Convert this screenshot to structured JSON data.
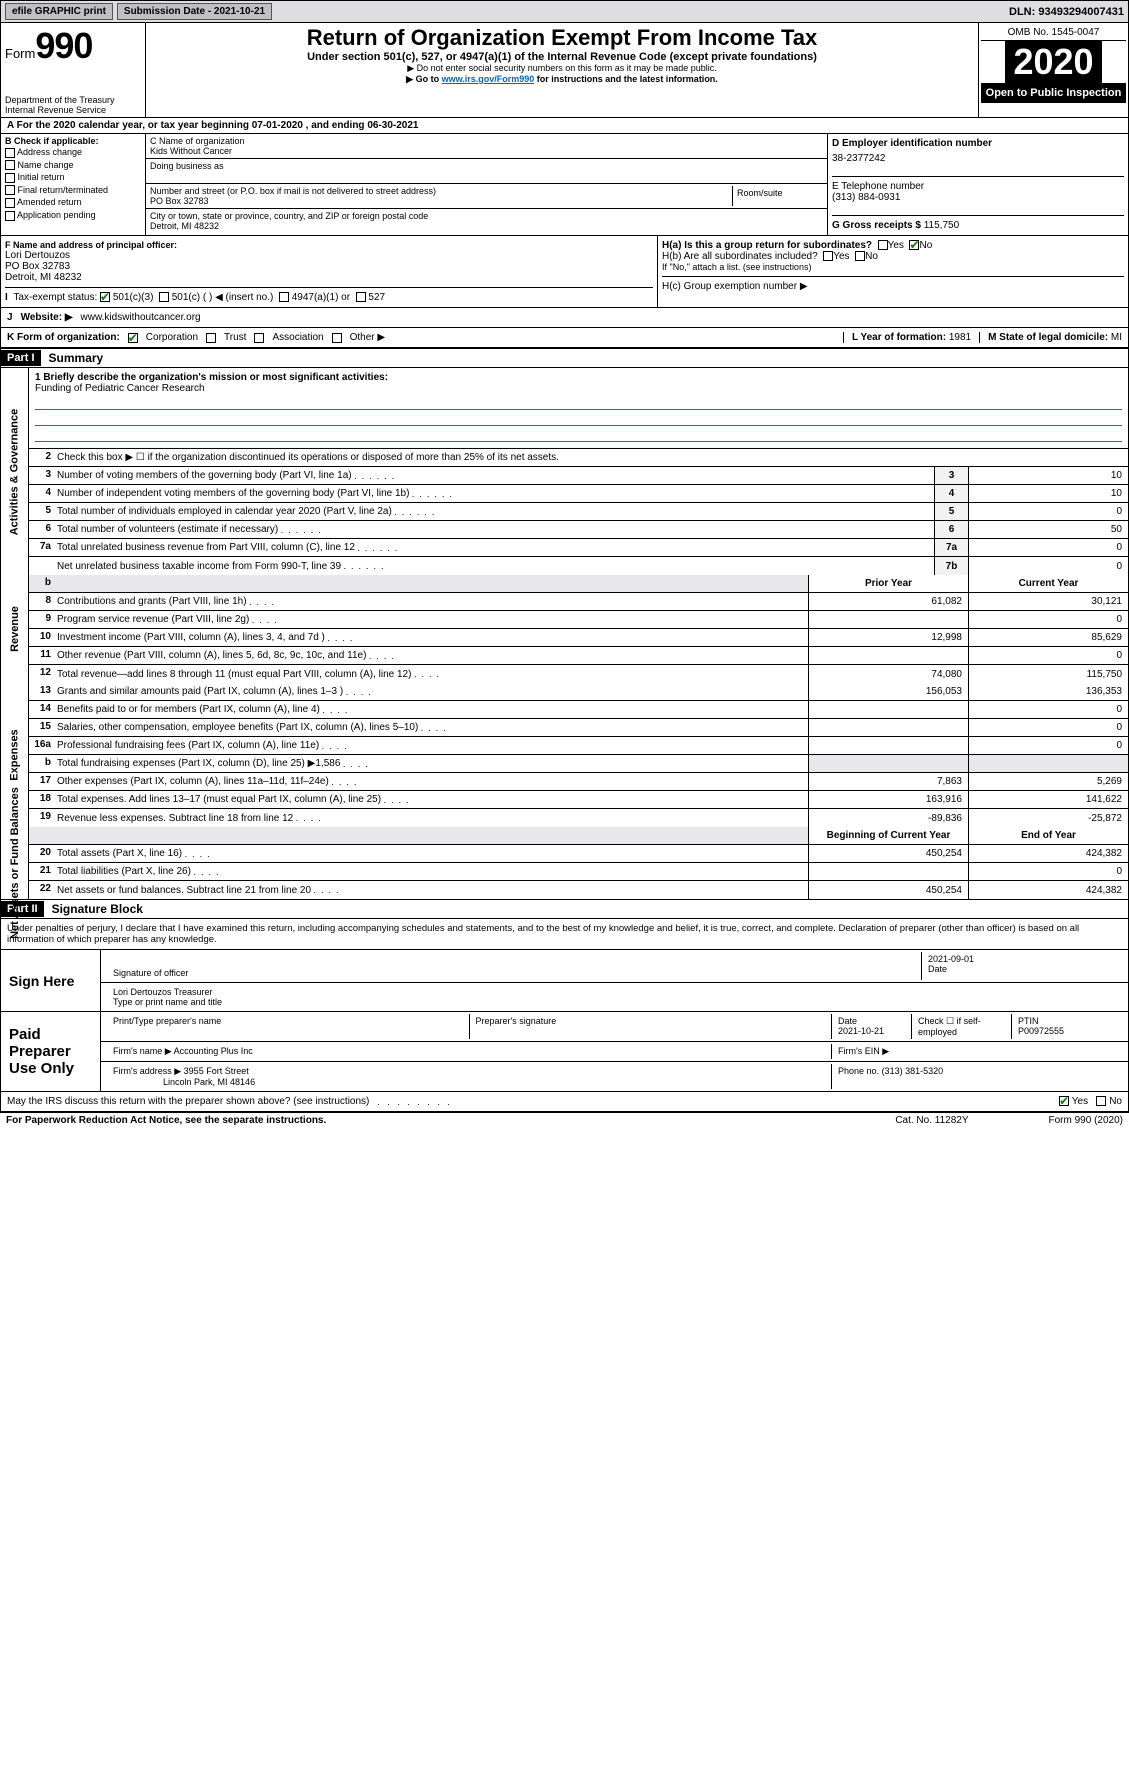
{
  "topbar": {
    "efile": "efile GRAPHIC print",
    "subdate_label": "Submission Date - 2021-10-21",
    "dln": "DLN: 93493294007431"
  },
  "header": {
    "form_word": "Form",
    "form_num": "990",
    "dept": "Department of the Treasury\nInternal Revenue Service",
    "title": "Return of Organization Exempt From Income Tax",
    "subtitle": "Under section 501(c), 527, or 4947(a)(1) of the Internal Revenue Code (except private foundations)",
    "note1": "▶ Do not enter social security numbers on this form as it may be made public.",
    "note2_pre": "▶ Go to ",
    "note2_link": "www.irs.gov/Form990",
    "note2_post": " for instructions and the latest information.",
    "omb": "OMB No. 1545-0047",
    "year": "2020",
    "inspect": "Open to Public Inspection"
  },
  "period": "A For the 2020 calendar year, or tax year beginning 07-01-2020   , and ending 06-30-2021",
  "section_b": {
    "label": "B Check if applicable:",
    "opts": [
      "Address change",
      "Name change",
      "Initial return",
      "Final return/terminated",
      "Amended return",
      "Application pending"
    ]
  },
  "section_c": {
    "name_label": "C Name of organization",
    "name": "Kids Without Cancer",
    "dba_label": "Doing business as",
    "addr_label": "Number and street (or P.O. box if mail is not delivered to street address)",
    "room_label": "Room/suite",
    "addr": "PO Box 32783",
    "city_label": "City or town, state or province, country, and ZIP or foreign postal code",
    "city": "Detroit, MI  48232"
  },
  "section_d": {
    "label": "D Employer identification number",
    "val": "38-2377242"
  },
  "section_e": {
    "label": "E Telephone number",
    "val": "(313) 884-0931"
  },
  "section_g": {
    "label": "G Gross receipts $",
    "val": "115,750"
  },
  "section_f": {
    "label": "F  Name and address of principal officer:",
    "name": "Lori Dertouzos",
    "addr1": "PO Box 32783",
    "addr2": "Detroit, MI  48232"
  },
  "section_h": {
    "ha": "H(a)  Is this a group return for subordinates?",
    "hb": "H(b)  Are all subordinates included?",
    "hb_note": "If \"No,\" attach a list. (see instructions)",
    "hc": "H(c)  Group exemption number ▶",
    "yes": "Yes",
    "no": "No"
  },
  "section_i": {
    "label": "Tax-exempt status:",
    "o1": "501(c)(3)",
    "o2": "501(c) (  ) ◀ (insert no.)",
    "o3": "4947(a)(1) or",
    "o4": "527"
  },
  "section_j": {
    "label": "J",
    "text": "Website: ▶",
    "val": "www.kidswithoutcancer.org"
  },
  "section_k": {
    "label": "K Form of organization:",
    "opts": [
      "Corporation",
      "Trust",
      "Association",
      "Other ▶"
    ]
  },
  "section_l": {
    "label": "L Year of formation:",
    "val": "1981"
  },
  "section_m": {
    "label": "M State of legal domicile:",
    "val": "MI"
  },
  "part1": {
    "tag": "Part I",
    "title": "Summary"
  },
  "mission": {
    "q": "1  Briefly describe the organization's mission or most significant activities:",
    "a": "Funding of Pediatric Cancer Research"
  },
  "line2": "Check this box ▶ ☐  if the organization discontinued its operations or disposed of more than 25% of its net assets.",
  "gov": [
    {
      "n": "3",
      "d": "Number of voting members of the governing body (Part VI, line 1a)",
      "b": "3",
      "v": "10"
    },
    {
      "n": "4",
      "d": "Number of independent voting members of the governing body (Part VI, line 1b)",
      "b": "4",
      "v": "10"
    },
    {
      "n": "5",
      "d": "Total number of individuals employed in calendar year 2020 (Part V, line 2a)",
      "b": "5",
      "v": "0"
    },
    {
      "n": "6",
      "d": "Total number of volunteers (estimate if necessary)",
      "b": "6",
      "v": "50"
    },
    {
      "n": "7a",
      "d": "Total unrelated business revenue from Part VIII, column (C), line 12",
      "b": "7a",
      "v": "0"
    },
    {
      "n": "",
      "d": "Net unrelated business taxable income from Form 990-T, line 39",
      "b": "7b",
      "v": "0"
    }
  ],
  "rev_hdr": {
    "prior": "Prior Year",
    "curr": "Current Year"
  },
  "rev": [
    {
      "n": "8",
      "d": "Contributions and grants (Part VIII, line 1h)",
      "p": "61,082",
      "c": "30,121"
    },
    {
      "n": "9",
      "d": "Program service revenue (Part VIII, line 2g)",
      "p": "",
      "c": "0"
    },
    {
      "n": "10",
      "d": "Investment income (Part VIII, column (A), lines 3, 4, and 7d )",
      "p": "12,998",
      "c": "85,629"
    },
    {
      "n": "11",
      "d": "Other revenue (Part VIII, column (A), lines 5, 6d, 8c, 9c, 10c, and 11e)",
      "p": "",
      "c": "0"
    },
    {
      "n": "12",
      "d": "Total revenue—add lines 8 through 11 (must equal Part VIII, column (A), line 12)",
      "p": "74,080",
      "c": "115,750"
    }
  ],
  "exp": [
    {
      "n": "13",
      "d": "Grants and similar amounts paid (Part IX, column (A), lines 1–3 )",
      "p": "156,053",
      "c": "136,353"
    },
    {
      "n": "14",
      "d": "Benefits paid to or for members (Part IX, column (A), line 4)",
      "p": "",
      "c": "0"
    },
    {
      "n": "15",
      "d": "Salaries, other compensation, employee benefits (Part IX, column (A), lines 5–10)",
      "p": "",
      "c": "0"
    },
    {
      "n": "16a",
      "d": "Professional fundraising fees (Part IX, column (A), line 11e)",
      "p": "",
      "c": "0"
    },
    {
      "n": "b",
      "d": "Total fundraising expenses (Part IX, column (D), line 25) ▶1,586",
      "p": "shade",
      "c": "shade"
    },
    {
      "n": "17",
      "d": "Other expenses (Part IX, column (A), lines 11a–11d, 11f–24e)",
      "p": "7,863",
      "c": "5,269"
    },
    {
      "n": "18",
      "d": "Total expenses. Add lines 13–17 (must equal Part IX, column (A), line 25)",
      "p": "163,916",
      "c": "141,622"
    },
    {
      "n": "19",
      "d": "Revenue less expenses. Subtract line 18 from line 12",
      "p": "-89,836",
      "c": "-25,872"
    }
  ],
  "na_hdr": {
    "beg": "Beginning of Current Year",
    "end": "End of Year"
  },
  "na": [
    {
      "n": "20",
      "d": "Total assets (Part X, line 16)",
      "p": "450,254",
      "c": "424,382"
    },
    {
      "n": "21",
      "d": "Total liabilities (Part X, line 26)",
      "p": "",
      "c": "0"
    },
    {
      "n": "22",
      "d": "Net assets or fund balances. Subtract line 21 from line 20",
      "p": "450,254",
      "c": "424,382"
    }
  ],
  "sidelabels": {
    "gov": "Activities & Governance",
    "rev": "Revenue",
    "exp": "Expenses",
    "na": "Net Assets or Fund Balances"
  },
  "part2": {
    "tag": "Part II",
    "title": "Signature Block"
  },
  "penalties": "Under penalties of perjury, I declare that I have examined this return, including accompanying schedules and statements, and to the best of my knowledge and belief, it is true, correct, and complete. Declaration of preparer (other than officer) is based on all information of which preparer has any knowledge.",
  "sign": {
    "here": "Sign Here",
    "sig_label": "Signature of officer",
    "date": "2021-09-01",
    "date_label": "Date",
    "name": "Lori Dertouzos  Treasurer",
    "name_label": "Type or print name and title"
  },
  "paid": {
    "label": "Paid Preparer Use Only",
    "c1": "Print/Type preparer's name",
    "c2": "Preparer's signature",
    "c3": "Date",
    "c3v": "2021-10-21",
    "c4": "Check ☐ if self-employed",
    "c5": "PTIN",
    "c5v": "P00972555",
    "firm_label": "Firm's name    ▶",
    "firm": "Accounting Plus Inc",
    "ein_label": "Firm's EIN ▶",
    "addr_label": "Firm's address ▶",
    "addr1": "3955 Fort Street",
    "addr2": "Lincoln Park, MI  48146",
    "phone_label": "Phone no.",
    "phone": "(313) 381-5320"
  },
  "discuss": {
    "q": "May the IRS discuss this return with the preparer shown above? (see instructions)",
    "yes": "Yes",
    "no": "No"
  },
  "footer": {
    "l": "For Paperwork Reduction Act Notice, see the separate instructions.",
    "m": "Cat. No. 11282Y",
    "r": "Form 990 (2020)"
  }
}
